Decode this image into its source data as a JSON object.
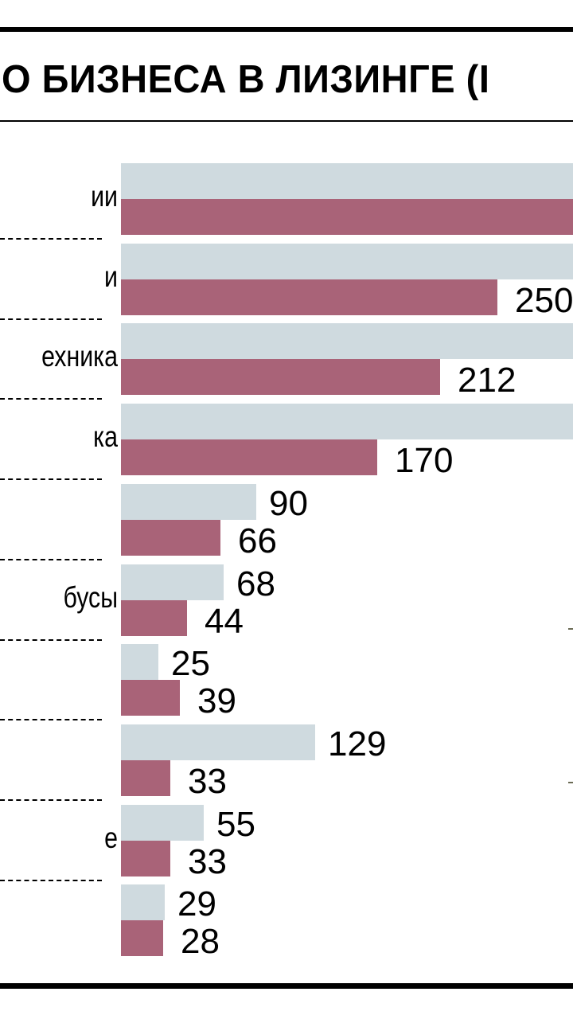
{
  "header": {
    "title": "О БИЗНЕСА В ЛИЗИНГЕ (I"
  },
  "colors": {
    "series_prev": "#cfdadf",
    "series_curr": "#a96378",
    "rule": "#000000"
  },
  "chart_data": {
    "type": "bar",
    "orientation": "horizontal",
    "title": "…О БИЗНЕСА В ЛИЗИНГЕ (…",
    "categories_visible_fragments": [
      "ии",
      "и",
      "ехника",
      "ка",
      "",
      "бусы",
      "",
      "",
      "е",
      ""
    ],
    "series": [
      {
        "name": "previous period (light grey)",
        "color": "#cfdadf",
        "values": [
          null,
          null,
          null,
          null,
          90,
          68,
          25,
          129,
          55,
          29
        ],
        "note": "first four bars extend beyond the right crop edge; values not visible"
      },
      {
        "name": "current period (mauve)",
        "color": "#a96378",
        "values": [
          null,
          250,
          212,
          170,
          66,
          44,
          39,
          33,
          33,
          28
        ],
        "note": "first bar extends beyond the right crop edge; value label for second bar partially clipped ('250')"
      }
    ],
    "visible_value_labels": {
      "prev": [
        "",
        "",
        "",
        "",
        "90",
        "68",
        "25",
        "129",
        "55",
        "29"
      ],
      "curr": [
        "",
        "250",
        "212",
        "170",
        "66",
        "44",
        "39",
        "33",
        "33",
        "28"
      ]
    },
    "xlabel": "",
    "ylabel": "",
    "grid": false,
    "legend": "not visible (cropped)",
    "separators": "dashed lines between category labels"
  },
  "rows": [
    {
      "label": "ии",
      "prev_w": 568,
      "curr_w": 568,
      "prev_label": "",
      "curr_label": ""
    },
    {
      "label": "и",
      "prev_w": 568,
      "curr_w": 473,
      "prev_label": "",
      "curr_label": "250"
    },
    {
      "label": "ехника",
      "prev_w": 568,
      "curr_w": 401,
      "prev_label": "",
      "curr_label": "212"
    },
    {
      "label": "ка",
      "prev_w": 568,
      "curr_w": 322,
      "prev_label": "",
      "curr_label": "170"
    },
    {
      "label": "",
      "prev_w": 170,
      "curr_w": 125,
      "prev_label": "90",
      "curr_label": "66"
    },
    {
      "label": "бусы",
      "prev_w": 129,
      "curr_w": 83,
      "prev_label": "68",
      "curr_label": "44"
    },
    {
      "label": "",
      "prev_w": 47,
      "curr_w": 74,
      "prev_label": "25",
      "curr_label": "39"
    },
    {
      "label": "",
      "prev_w": 244,
      "curr_w": 62,
      "prev_label": "129",
      "curr_label": "33"
    },
    {
      "label": "е",
      "prev_w": 104,
      "curr_w": 62,
      "prev_label": "55",
      "curr_label": "33"
    },
    {
      "label": "",
      "prev_w": 55,
      "curr_w": 53,
      "prev_label": "29",
      "curr_label": "28"
    }
  ]
}
